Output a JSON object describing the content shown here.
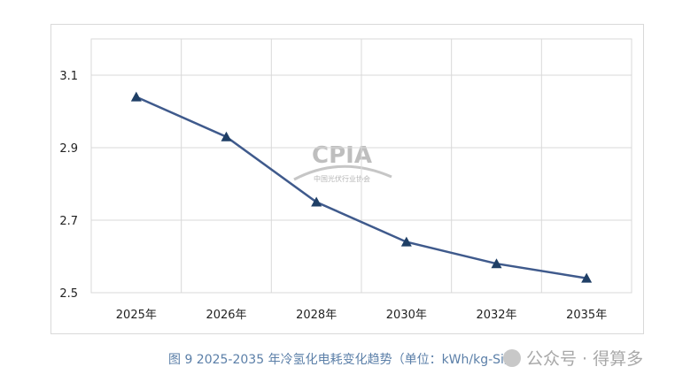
{
  "chart_data": {
    "type": "line",
    "categories": [
      "2025年",
      "2026年",
      "2028年",
      "2030年",
      "2032年",
      "2035年"
    ],
    "series": [
      {
        "values": [
          3.04,
          2.93,
          2.75,
          2.64,
          2.58,
          2.54
        ],
        "color": "#3f5a8c",
        "marker": "triangle"
      }
    ],
    "yticks": [
      "2.5",
      "2.7",
      "2.9",
      "3.1"
    ],
    "ylim": [
      2.5,
      3.2
    ],
    "grid": true
  },
  "caption": "图 9   2025-2035 年冷氢化电耗变化趋势（单位：kWh/kg-Si）",
  "logo": {
    "text": "CPIA",
    "subtitle": "中国光伏行业协会"
  },
  "watermark": "公众号 · 得算多"
}
